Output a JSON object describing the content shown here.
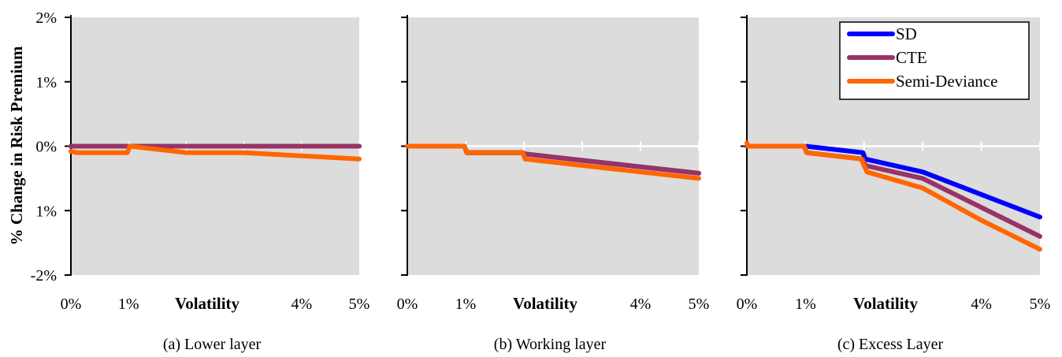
{
  "ylabel": "% Change in Risk Premium",
  "ytick_labels": [
    "2%",
    "1%",
    "0%",
    "1%",
    "-2%"
  ],
  "colors": {
    "plot_bg": "#dcdcdc",
    "SD": "#0000ff",
    "CTE": "#993366",
    "Semi-Deviance": "#ff6600"
  },
  "legend": {
    "entries": [
      "SD",
      "CTE",
      "Semi-Deviance"
    ],
    "placement": "top-right of panel (c)"
  },
  "chart_data": [
    {
      "type": "line",
      "caption": "(a) Lower layer",
      "xlabel": "Volatility",
      "xtick_labels": [
        "0%",
        "1%",
        "",
        "",
        "4%",
        "5%"
      ],
      "ylim": [
        -0.02,
        0.02
      ],
      "xlim": [
        0,
        0.05
      ],
      "grid": "horizontal white line at 0%, vertical ticks only",
      "series": [
        {
          "name": "SD",
          "x": [
            0,
            0.05
          ],
          "y": [
            0,
            0
          ]
        },
        {
          "name": "CTE",
          "x": [
            0,
            0.05
          ],
          "y": [
            0,
            0
          ]
        },
        {
          "name": "Semi-Deviance",
          "x": [
            0,
            0.001,
            0.0098,
            0.0102,
            0.02,
            0.03,
            0.04,
            0.05
          ],
          "y": [
            -0.0008,
            -0.001,
            -0.001,
            0,
            -0.001,
            -0.001,
            -0.0015,
            -0.002
          ]
        }
      ]
    },
    {
      "type": "line",
      "caption": "(b) Working layer",
      "xlabel": "Volatility",
      "xtick_labels": [
        "0%",
        "1%",
        "",
        "",
        "4%",
        "5%"
      ],
      "ylim": [
        -0.02,
        0.02
      ],
      "xlim": [
        0,
        0.05
      ],
      "series": [
        {
          "name": "SD",
          "x": [
            0,
            0.0098,
            0.0102,
            0.0198,
            0.0202,
            0.03,
            0.04,
            0.05
          ],
          "y": [
            0,
            0,
            -0.001,
            -0.001,
            -0.0012,
            -0.0022,
            -0.0032,
            -0.0042
          ]
        },
        {
          "name": "CTE",
          "x": [
            0,
            0.0098,
            0.0102,
            0.0198,
            0.0202,
            0.03,
            0.04,
            0.05
          ],
          "y": [
            0,
            0,
            -0.001,
            -0.001,
            -0.0012,
            -0.0022,
            -0.0032,
            -0.0042
          ]
        },
        {
          "name": "Semi-Deviance",
          "x": [
            0,
            0.0098,
            0.0102,
            0.0198,
            0.0202,
            0.03,
            0.04,
            0.05
          ],
          "y": [
            0,
            0,
            -0.001,
            -0.001,
            -0.002,
            -0.003,
            -0.004,
            -0.005
          ]
        }
      ]
    },
    {
      "type": "line",
      "caption": "(c) Excess Layer",
      "xlabel": "Volatility",
      "xtick_labels": [
        "0%",
        "1%",
        "",
        "",
        "4%",
        "5%"
      ],
      "ylim": [
        -0.02,
        0.02
      ],
      "xlim": [
        0,
        0.05
      ],
      "series": [
        {
          "name": "SD",
          "x": [
            0,
            0.01,
            0.0198,
            0.0202,
            0.03,
            0.04,
            0.05
          ],
          "y": [
            0,
            0,
            -0.001,
            -0.002,
            -0.004,
            -0.0075,
            -0.011
          ]
        },
        {
          "name": "CTE",
          "x": [
            0,
            0.0098,
            0.0102,
            0.0198,
            0.0202,
            0.03,
            0.04,
            0.05
          ],
          "y": [
            0,
            0,
            -0.001,
            -0.002,
            -0.003,
            -0.005,
            -0.0095,
            -0.014
          ]
        },
        {
          "name": "Semi-Deviance",
          "x": [
            0,
            0.0002,
            0.0098,
            0.0102,
            0.0195,
            0.0205,
            0.03,
            0.04,
            0.05
          ],
          "y": [
            0.0005,
            0,
            0,
            -0.001,
            -0.002,
            -0.004,
            -0.0065,
            -0.0115,
            -0.016
          ]
        }
      ]
    }
  ]
}
